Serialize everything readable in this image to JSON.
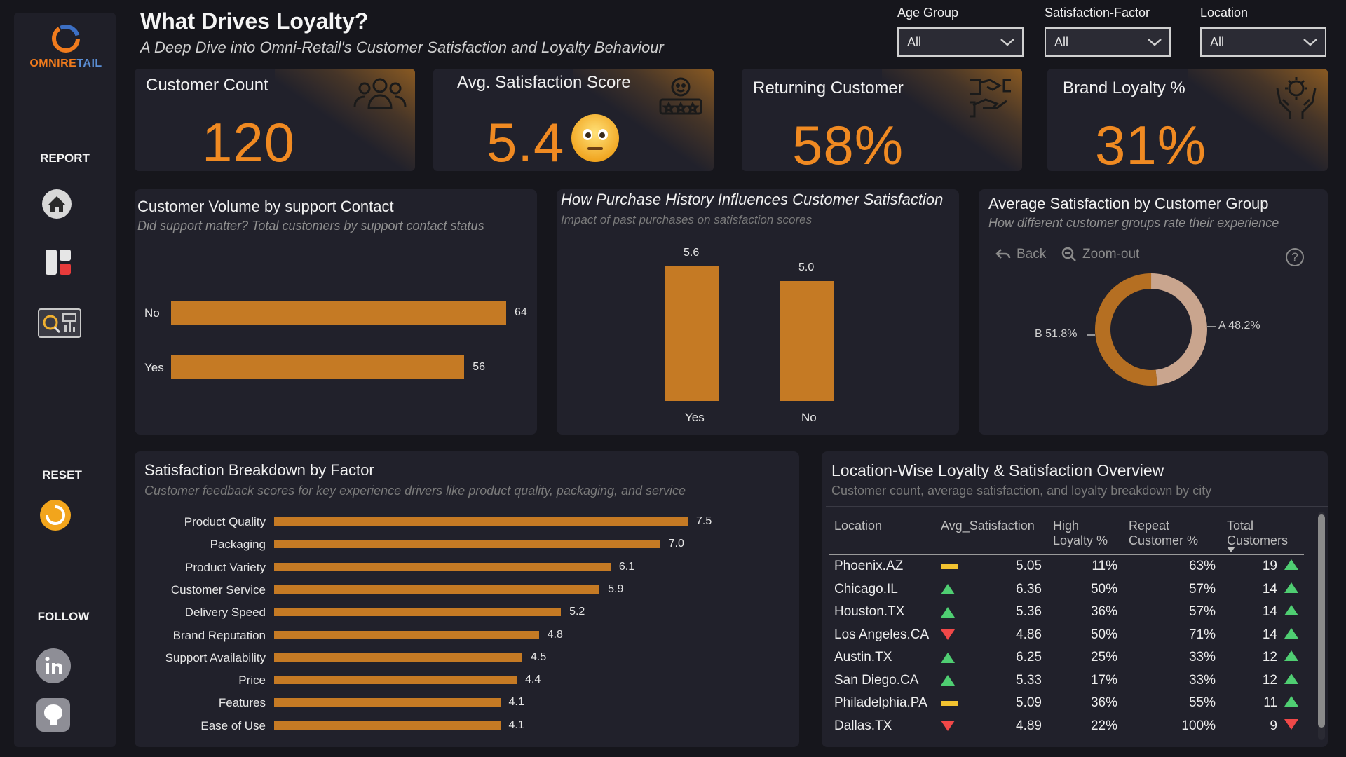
{
  "logo": {
    "part1": "OMNIRE",
    "part2": "TAIL"
  },
  "nav": {
    "report": "REPORT",
    "reset": "RESET",
    "follow": "FOLLOW"
  },
  "header": {
    "title": "What Drives Loyalty?",
    "subtitle": "A Deep Dive into Omni-Retail's Customer Satisfaction and Loyalty Behaviour"
  },
  "filters": [
    {
      "label": "Age Group",
      "value": "All"
    },
    {
      "label": "Satisfaction-Factor",
      "value": "All"
    },
    {
      "label": "Location",
      "value": "All"
    }
  ],
  "kpis": [
    {
      "title": "Customer Count",
      "value": "120",
      "icon": "users-icon"
    },
    {
      "title": "Avg. Satisfaction Score",
      "value": "5.4",
      "icon": "rating-icon"
    },
    {
      "title": "Returning Customer",
      "value": "58%",
      "icon": "handshake-icon"
    },
    {
      "title": "Brand Loyalty %",
      "value": "31%",
      "icon": "loyalty-hands-icon"
    }
  ],
  "support_panel": {
    "title": "Customer Volume by support Contact",
    "subtitle": "Did support matter? Total customers  by support contact status"
  },
  "purchase_panel": {
    "title": "How Purchase History Influences Customer Satisfaction",
    "subtitle": "Impact of past purchases on satisfaction scores"
  },
  "group_panel": {
    "title": "Average Satisfaction by Customer Group",
    "subtitle": "How different customer groups rate their experience",
    "back_label": "Back",
    "zoom_label": "Zoom-out",
    "help_glyph": "?"
  },
  "factor_panel": {
    "title": "Satisfaction Breakdown by Factor",
    "subtitle": "Customer feedback scores for key experience drivers like product quality, packaging, and service"
  },
  "location_panel": {
    "title": "Location-Wise Loyalty & Satisfaction Overview",
    "subtitle": "Customer count, average satisfaction, and loyalty breakdown by city",
    "columns": [
      "Location",
      "Avg_Satisfaction",
      "High Loyalty %",
      "Repeat Customer %",
      "Total Customers"
    ],
    "rows": [
      {
        "location": "Phoenix.AZ",
        "trend": "flat",
        "avg": "5.05",
        "high": "11%",
        "repeat": "63%",
        "total": "19",
        "total_trend": "up"
      },
      {
        "location": "Chicago.IL",
        "trend": "up",
        "avg": "6.36",
        "high": "50%",
        "repeat": "57%",
        "total": "14",
        "total_trend": "up"
      },
      {
        "location": "Houston.TX",
        "trend": "up",
        "avg": "5.36",
        "high": "36%",
        "repeat": "57%",
        "total": "14",
        "total_trend": "up"
      },
      {
        "location": "Los Angeles.CA",
        "trend": "down",
        "avg": "4.86",
        "high": "50%",
        "repeat": "71%",
        "total": "14",
        "total_trend": "up"
      },
      {
        "location": "Austin.TX",
        "trend": "up",
        "avg": "6.25",
        "high": "25%",
        "repeat": "33%",
        "total": "12",
        "total_trend": "up"
      },
      {
        "location": "San Diego.CA",
        "trend": "up",
        "avg": "5.33",
        "high": "17%",
        "repeat": "33%",
        "total": "12",
        "total_trend": "up"
      },
      {
        "location": "Philadelphia.PA",
        "trend": "flat",
        "avg": "5.09",
        "high": "36%",
        "repeat": "55%",
        "total": "11",
        "total_trend": "up"
      },
      {
        "location": "Dallas.TX",
        "trend": "down",
        "avg": "4.89",
        "high": "22%",
        "repeat": "100%",
        "total": "9",
        "total_trend": "down"
      }
    ]
  },
  "colors": {
    "accent": "#f08a22",
    "bar": "#c57a24",
    "donut_a": "#c9a58e",
    "donut_b": "#b56f22",
    "up": "#4fce72",
    "down": "#f04848",
    "flat": "#f2c230"
  },
  "chart_data": [
    {
      "type": "bar",
      "orientation": "horizontal",
      "categories": [
        "No",
        "Yes"
      ],
      "values": [
        64,
        56
      ]
    },
    {
      "type": "bar",
      "orientation": "vertical",
      "categories": [
        "Yes",
        "No"
      ],
      "values": [
        5.6,
        5.0
      ],
      "value_labels": [
        "5.6",
        "5.0"
      ]
    },
    {
      "type": "pie",
      "variant": "donut",
      "categories": [
        "B",
        "A"
      ],
      "values": [
        51.8,
        48.2
      ],
      "value_labels": [
        "B 51.8%",
        "A 48.2%"
      ]
    },
    {
      "type": "bar",
      "orientation": "horizontal",
      "categories": [
        "Product Quality",
        "Packaging",
        "Product Variety",
        "Customer Service",
        "Delivery Speed",
        "Brand Reputation",
        "Support Availability",
        "Price",
        "Features",
        "Ease of Use"
      ],
      "values": [
        7.5,
        7.0,
        6.1,
        5.9,
        5.2,
        4.8,
        4.5,
        4.4,
        4.1,
        4.1
      ],
      "value_labels": [
        "7.5",
        "7.0",
        "6.1",
        "5.9",
        "5.2",
        "4.8",
        "4.5",
        "4.4",
        "4.1",
        "4.1"
      ]
    }
  ]
}
